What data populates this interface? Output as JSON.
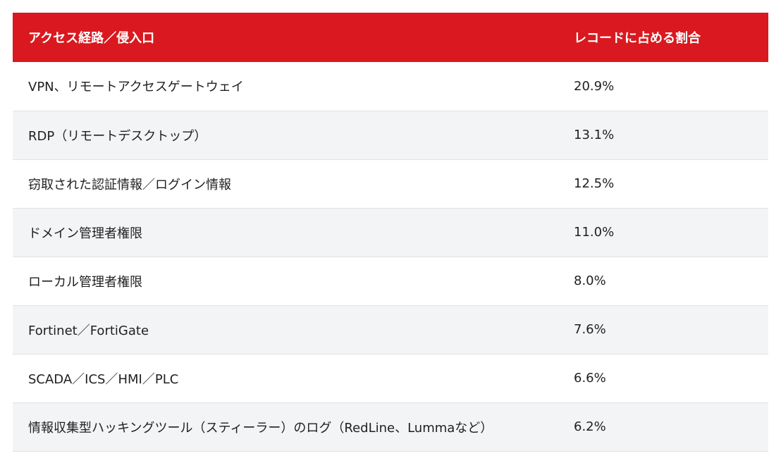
{
  "chart_data": {
    "type": "table",
    "columns": [
      "アクセス経路／侵入口",
      "レコードに占める割合"
    ],
    "rows": [
      {
        "label": "VPN、リモートアクセスゲートウェイ",
        "value_text": "20.9%",
        "value": 20.9
      },
      {
        "label": "RDP（リモートデスクトップ）",
        "value_text": "13.1%",
        "value": 13.1
      },
      {
        "label": "窃取された認証情報／ログイン情報",
        "value_text": "12.5%",
        "value": 12.5
      },
      {
        "label": "ドメイン管理者権限",
        "value_text": "11.0%",
        "value": 11.0
      },
      {
        "label": "ローカル管理者権限",
        "value_text": "8.0%",
        "value": 8.0
      },
      {
        "label": "Fortinet／FortiGate",
        "value_text": "7.6%",
        "value": 7.6
      },
      {
        "label": "SCADA／ICS／HMI／PLC",
        "value_text": "6.6%",
        "value": 6.6
      },
      {
        "label": "情報収集型ハッキングツール（スティーラー）のログ（RedLine、Lummaなど）",
        "value_text": "6.2%",
        "value": 6.2
      }
    ]
  },
  "colors": {
    "header_bg": "#d9191f",
    "header_text": "#ffffff",
    "row_alt_bg": "#f3f4f6",
    "row_bg": "#ffffff"
  }
}
